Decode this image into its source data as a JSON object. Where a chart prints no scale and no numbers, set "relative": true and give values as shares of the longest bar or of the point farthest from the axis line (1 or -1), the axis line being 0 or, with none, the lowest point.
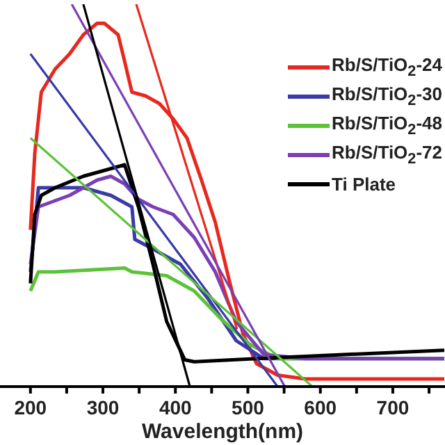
{
  "chart_data": {
    "type": "line",
    "relative": true,
    "xlabel": "Wavelength(nm)",
    "xlim": [
      158,
      772
    ],
    "xticks": [
      200,
      {
        "value": 250,
        "label": null
      },
      300,
      {
        "value": 350,
        "label": null
      },
      400,
      {
        "value": 450,
        "label": null
      },
      500,
      {
        "value": 550,
        "label": null
      },
      600,
      {
        "value": 650,
        "label": null
      },
      700,
      {
        "value": 750,
        "label": null
      }
    ],
    "legend": "right",
    "marker": "none",
    "line_style": "solid",
    "series": [
      {
        "name": "Rb/S/TiO$_{2}$-24",
        "color": "#e8281e",
        "x": [
          200,
          206,
          215,
          234,
          254,
          273,
          292,
          302,
          321,
          330,
          340,
          359,
          378,
          397,
          416,
          436,
          455,
          474,
          493,
          512,
          541,
          579,
          637,
          771
        ],
        "values": [
          0.41,
          0.61,
          0.77,
          0.83,
          0.87,
          0.92,
          0.95,
          0.95,
          0.92,
          0.85,
          0.77,
          0.76,
          0.74,
          0.7,
          0.65,
          0.54,
          0.43,
          0.28,
          0.14,
          0.06,
          0.03,
          0.02,
          0.02,
          0.02
        ]
      },
      {
        "name": "Rb/S/TiO$_{2}$-30",
        "color": "#3a3aa8",
        "x": [
          200,
          211,
          234,
          273,
          311,
          340,
          344,
          369,
          407,
          445,
          484,
          522,
          579,
          771
        ],
        "values": [
          0.3,
          0.52,
          0.52,
          0.52,
          0.5,
          0.47,
          0.385,
          0.36,
          0.32,
          0.23,
          0.12,
          0.073,
          0.073,
          0.073
        ]
      },
      {
        "name": "Rb/S/TiO$_{2}$-48",
        "color": "#5cc23a",
        "x": [
          200,
          211,
          234,
          330,
          340,
          388,
          426,
          464,
          503,
          541,
          599,
          771
        ],
        "values": [
          0.25,
          0.3,
          0.3,
          0.31,
          0.3,
          0.29,
          0.25,
          0.175,
          0.11,
          0.073,
          0.073,
          0.073
        ]
      },
      {
        "name": "Rb/S/TiO$_{2}$-72",
        "color": "#7b3fb5",
        "x": [
          200,
          211,
          254,
          292,
          311,
          330,
          349,
          369,
          397,
          426,
          455,
          484,
          522,
          579,
          771
        ],
        "values": [
          0.32,
          0.47,
          0.5,
          0.54,
          0.55,
          0.53,
          0.49,
          0.47,
          0.45,
          0.39,
          0.3,
          0.17,
          0.084,
          0.073,
          0.073
        ]
      },
      {
        "name": "Ti Plate",
        "color": "#000000",
        "x": [
          200,
          206,
          215,
          234,
          273,
          311,
          330,
          349,
          369,
          388,
          413,
          426,
          541,
          771
        ],
        "values": [
          0.27,
          0.45,
          0.5,
          0.52,
          0.55,
          0.57,
          0.58,
          0.47,
          0.32,
          0.17,
          0.07,
          0.065,
          0.076,
          0.095
        ]
      },
      {
        "color": "#e8281e",
        "x": [
          346,
          485
        ],
        "values": [
          1.0,
          0.15
        ]
      },
      {
        "color": "#3a3aa8",
        "x": [
          200,
          541
        ],
        "values": [
          0.87,
          0
        ]
      },
      {
        "color": "#5cc23a",
        "x": [
          200,
          589
        ],
        "values": [
          0.65,
          0
        ]
      },
      {
        "color": "#7b3fb5",
        "x": [
          257,
          551
        ],
        "values": [
          1.0,
          0
        ]
      },
      {
        "color": "#000000",
        "x": [
          273,
          420
        ],
        "values": [
          1.0,
          0
        ]
      }
    ]
  }
}
